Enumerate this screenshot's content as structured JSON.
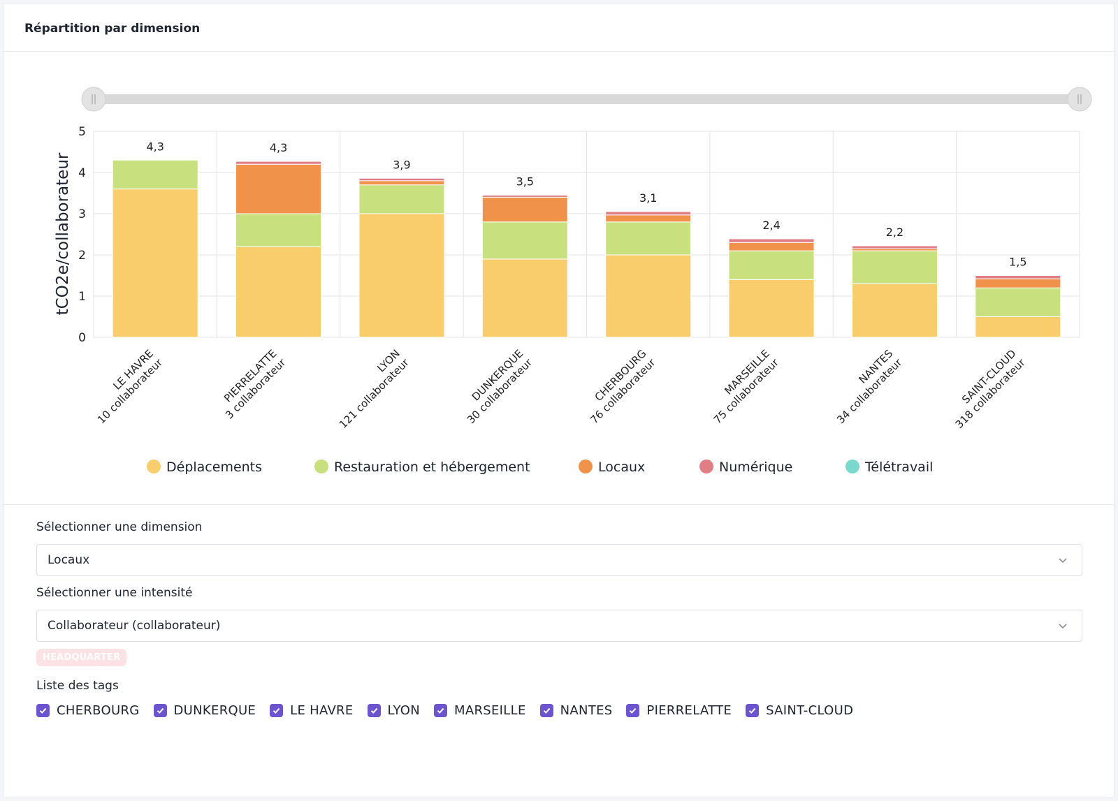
{
  "card": {
    "title": "Répartition par dimension"
  },
  "chart_data": {
    "type": "bar",
    "stacked": true,
    "ylabel": "tCO2e/collaborateur",
    "ylim": [
      0,
      5
    ],
    "yticks": [
      "0",
      "1",
      "2",
      "3",
      "4",
      "5"
    ],
    "categories": [
      "LE HAVRE",
      "PIERRELATTE",
      "LYON",
      "DUNKERQUE",
      "CHERBOURG",
      "MARSEILLE",
      "NANTES",
      "SAINT-CLOUD"
    ],
    "category_subtitles": [
      "10 collaborateur",
      "3 collaborateur",
      "121 collaborateur",
      "30 collaborateur",
      "76 collaborateur",
      "75 collaborateur",
      "34 collaborateur",
      "318 collaborateur"
    ],
    "totals": [
      4.3,
      4.27,
      3.86,
      3.45,
      3.05,
      2.39,
      2.22,
      1.5
    ],
    "total_labels": [
      "4,3",
      "4,3",
      "3,9",
      "3,5",
      "3,1",
      "2,4",
      "2,2",
      "1,5"
    ],
    "series": [
      {
        "name": "Déplacements",
        "color": "#f9cd6b",
        "values": [
          3.6,
          2.2,
          3.0,
          1.9,
          2.0,
          1.4,
          1.3,
          0.5
        ]
      },
      {
        "name": "Restauration et hébergement",
        "color": "#c9e07e",
        "values": [
          0.7,
          0.8,
          0.7,
          0.9,
          0.8,
          0.7,
          0.8,
          0.7
        ]
      },
      {
        "name": "Locaux",
        "color": "#f0924a",
        "values": [
          0.0,
          1.2,
          0.1,
          0.6,
          0.17,
          0.2,
          0.05,
          0.22
        ]
      },
      {
        "name": "Numérique",
        "color": "#e07d85",
        "values": [
          0.0,
          0.07,
          0.06,
          0.05,
          0.08,
          0.09,
          0.07,
          0.08
        ]
      },
      {
        "name": "Télétravail",
        "color": "#7ad8cc",
        "values": [
          0,
          0,
          0,
          0,
          0,
          0,
          0,
          0
        ]
      }
    ],
    "legend": [
      "Déplacements",
      "Restauration et hébergement",
      "Locaux",
      "Numérique",
      "Télétravail"
    ],
    "legend_position": "bottom",
    "grid": true
  },
  "form": {
    "dimension_label": "Sélectionner une dimension",
    "dimension_value": "Locaux",
    "intensity_label": "Sélectionner une intensité",
    "intensity_value": "Collaborateur (collaborateur)",
    "badge": "HEADQUARTER",
    "tags_label": "Liste des tags",
    "tags": [
      "CHERBOURG",
      "DUNKERQUE",
      "LE HAVRE",
      "LYON",
      "MARSEILLE",
      "NANTES",
      "PIERRELATTE",
      "SAINT-CLOUD"
    ]
  },
  "colors": {
    "accent": "#6d54cf",
    "grid": "#e3e3e3",
    "slider_track": "#d9d9d9"
  }
}
